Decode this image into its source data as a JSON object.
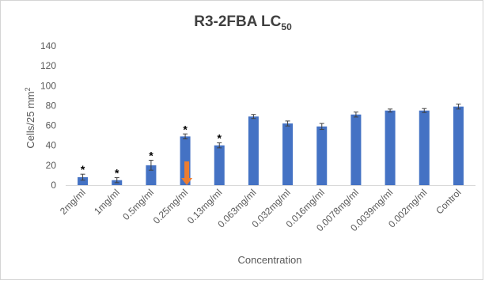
{
  "chart_data": {
    "type": "bar",
    "title": "R3-2FBA LC",
    "title_subscript": "50",
    "xlabel": "Concentration",
    "ylabel": "Cells/25 mm",
    "ylabel_superscript": "2",
    "ylim": [
      0,
      140
    ],
    "yticks": [
      0,
      20,
      40,
      60,
      80,
      100,
      120,
      140
    ],
    "grid": false,
    "legend": "none",
    "categories": [
      "2mg/ml",
      "1mg/ml",
      "0.5mg/ml",
      "0.25mg/ml",
      "0.13mg/ml",
      "0.063mg/ml",
      "0.032mg/ml",
      "0.016mg/ml",
      "0.0078mg/ml",
      "0.0039mg/ml",
      "0.002mg/ml",
      "Control"
    ],
    "values": [
      8,
      5,
      20,
      49,
      40,
      69,
      62,
      59,
      71,
      75,
      75,
      79
    ],
    "errors": [
      3,
      2.5,
      5,
      2.5,
      2.5,
      2,
      2.5,
      3,
      2.5,
      1.5,
      2,
      2.5
    ],
    "significance_marks": [
      "*",
      "*",
      "*",
      "*",
      "*",
      "",
      "",
      "",
      "",
      "",
      "",
      ""
    ],
    "annotation_arrow": {
      "category": "0.25mg/ml",
      "direction": "down",
      "color": "#ED7D31"
    },
    "colors": {
      "bar": "#4472C4",
      "error_bar": "#404040",
      "axis": "#d9d9d9"
    }
  }
}
